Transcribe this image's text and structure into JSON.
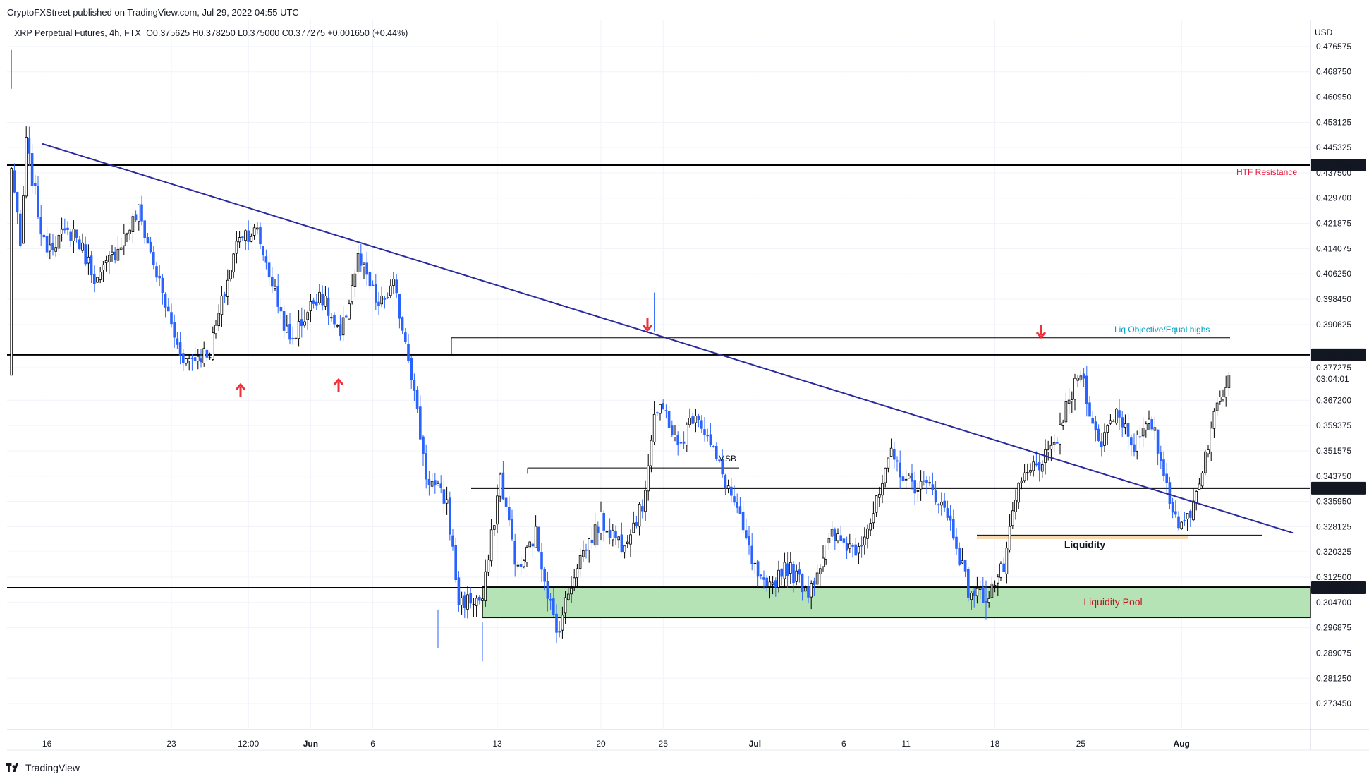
{
  "header": {
    "published": "CryptoFXStreet published on TradingView.com, Jul 29, 2022 04:55 UTC",
    "symbol": "XRP Perpetual Futures, 4h, FTX",
    "ohlc": "O0.375625 H0.378250 L0.375000 C0.377275 +0.001650 (+0.44%)"
  },
  "footer": {
    "brand": "TradingView",
    "logo_icon": "tradingview-logo-icon"
  },
  "colors": {
    "up": "#000000",
    "down": "#2962ff",
    "trendline": "#2a2a9e",
    "red_arrow": "#f0303a",
    "zone_fill": "#b5e3b5",
    "liquidity_band": "#f7d9b0",
    "htf_text": "#e8193c",
    "liq_text": "#00a0c0",
    "pool_text": "#c0141e"
  },
  "chart_data": {
    "type": "candlestick",
    "title": "XRP Perpetual Futures, 4h, FTX",
    "currency_label": "USD",
    "ylim": [
      0.268,
      0.482
    ],
    "x_ticks": [
      "16",
      "23",
      "12:00",
      "Jun",
      "6",
      "13",
      "20",
      "25",
      "Jul",
      "6",
      "11",
      "18",
      "25",
      "Aug"
    ],
    "y_ticks": [
      "0.476575",
      "0.468750",
      "0.460950",
      "0.453125",
      "0.445325",
      "0.437500",
      "0.429700",
      "0.421875",
      "0.414075",
      "0.406250",
      "0.398450",
      "0.390625",
      "0.377275",
      "0.367200",
      "0.359375",
      "0.351575",
      "0.343750",
      "0.335950",
      "0.328125",
      "0.320325",
      "0.312500",
      "0.304700",
      "0.296875",
      "0.289075",
      "0.281250",
      "0.273450"
    ],
    "countdown": "03:04:01",
    "price_levels": [
      {
        "label": "0.439900",
        "value": 0.4399,
        "note": "HTF Resistance"
      },
      {
        "label": "0.381250",
        "value": 0.38125,
        "note": ""
      },
      {
        "label": "0.340025",
        "value": 0.340025,
        "note": ""
      },
      {
        "label": "0.309225",
        "value": 0.309225,
        "note": ""
      }
    ],
    "last_price": 0.377275,
    "annotations": {
      "htf": "HTF Resistance",
      "liq_objective": "Liq Objective/Equal highs",
      "msb": "MSB",
      "liquidity": "Liquidity",
      "liquidity_pool": "Liquidity Pool"
    },
    "anchors": [
      [
        0,
        0.375,
        "d"
      ],
      [
        1,
        0.44,
        "u"
      ],
      [
        4,
        0.414,
        "d"
      ],
      [
        6,
        0.4465,
        "u"
      ],
      [
        12,
        0.415,
        "d"
      ],
      [
        22,
        0.4195,
        "u"
      ],
      [
        30,
        0.404,
        "d"
      ],
      [
        44,
        0.4255,
        "u"
      ],
      [
        57,
        0.384,
        "d"
      ],
      [
        60,
        0.3795,
        "d"
      ],
      [
        68,
        0.3825,
        "u"
      ],
      [
        78,
        0.419,
        "u"
      ],
      [
        84,
        0.419,
        "u"
      ],
      [
        95,
        0.385,
        "d"
      ],
      [
        105,
        0.401,
        "u"
      ],
      [
        112,
        0.386,
        "d"
      ],
      [
        118,
        0.411,
        "u"
      ],
      [
        125,
        0.396,
        "d"
      ],
      [
        130,
        0.4025,
        "u"
      ],
      [
        135,
        0.382,
        "d"
      ],
      [
        141,
        0.344,
        "d"
      ],
      [
        148,
        0.3355,
        "d"
      ],
      [
        152,
        0.305,
        "d"
      ],
      [
        160,
        0.3055,
        "d"
      ],
      [
        166,
        0.3435,
        "u"
      ],
      [
        172,
        0.314,
        "d"
      ],
      [
        178,
        0.326,
        "u"
      ],
      [
        185,
        0.295,
        "d"
      ],
      [
        192,
        0.317,
        "u"
      ],
      [
        200,
        0.33,
        "u"
      ],
      [
        207,
        0.323,
        "d"
      ],
      [
        214,
        0.334,
        "u"
      ],
      [
        218,
        0.363,
        "u"
      ],
      [
        222,
        0.3635,
        "u"
      ],
      [
        226,
        0.352,
        "d"
      ],
      [
        232,
        0.3645,
        "u"
      ],
      [
        238,
        0.351,
        "d"
      ],
      [
        245,
        0.3355,
        "d"
      ],
      [
        252,
        0.3145,
        "d"
      ],
      [
        256,
        0.3075,
        "d"
      ],
      [
        262,
        0.3165,
        "u"
      ],
      [
        270,
        0.3085,
        "d"
      ],
      [
        278,
        0.325,
        "u"
      ],
      [
        286,
        0.3215,
        "d"
      ],
      [
        292,
        0.332,
        "u"
      ],
      [
        298,
        0.35,
        "u"
      ],
      [
        304,
        0.3415,
        "d"
      ],
      [
        312,
        0.34,
        "u"
      ],
      [
        318,
        0.3295,
        "d"
      ],
      [
        324,
        0.3085,
        "d"
      ],
      [
        330,
        0.3065,
        "d"
      ],
      [
        336,
        0.3155,
        "u"
      ],
      [
        341,
        0.3405,
        "u"
      ],
      [
        346,
        0.3465,
        "u"
      ],
      [
        352,
        0.3505,
        "u"
      ],
      [
        356,
        0.3615,
        "u"
      ],
      [
        362,
        0.3765,
        "u"
      ],
      [
        368,
        0.353,
        "d"
      ],
      [
        374,
        0.3645,
        "u"
      ],
      [
        380,
        0.3535,
        "d"
      ],
      [
        386,
        0.36,
        "u"
      ],
      [
        392,
        0.3375,
        "d"
      ],
      [
        396,
        0.327,
        "d"
      ],
      [
        400,
        0.3355,
        "u"
      ],
      [
        404,
        0.3505,
        "u"
      ],
      [
        408,
        0.3655,
        "u"
      ],
      [
        412,
        0.375,
        "u"
      ]
    ]
  }
}
